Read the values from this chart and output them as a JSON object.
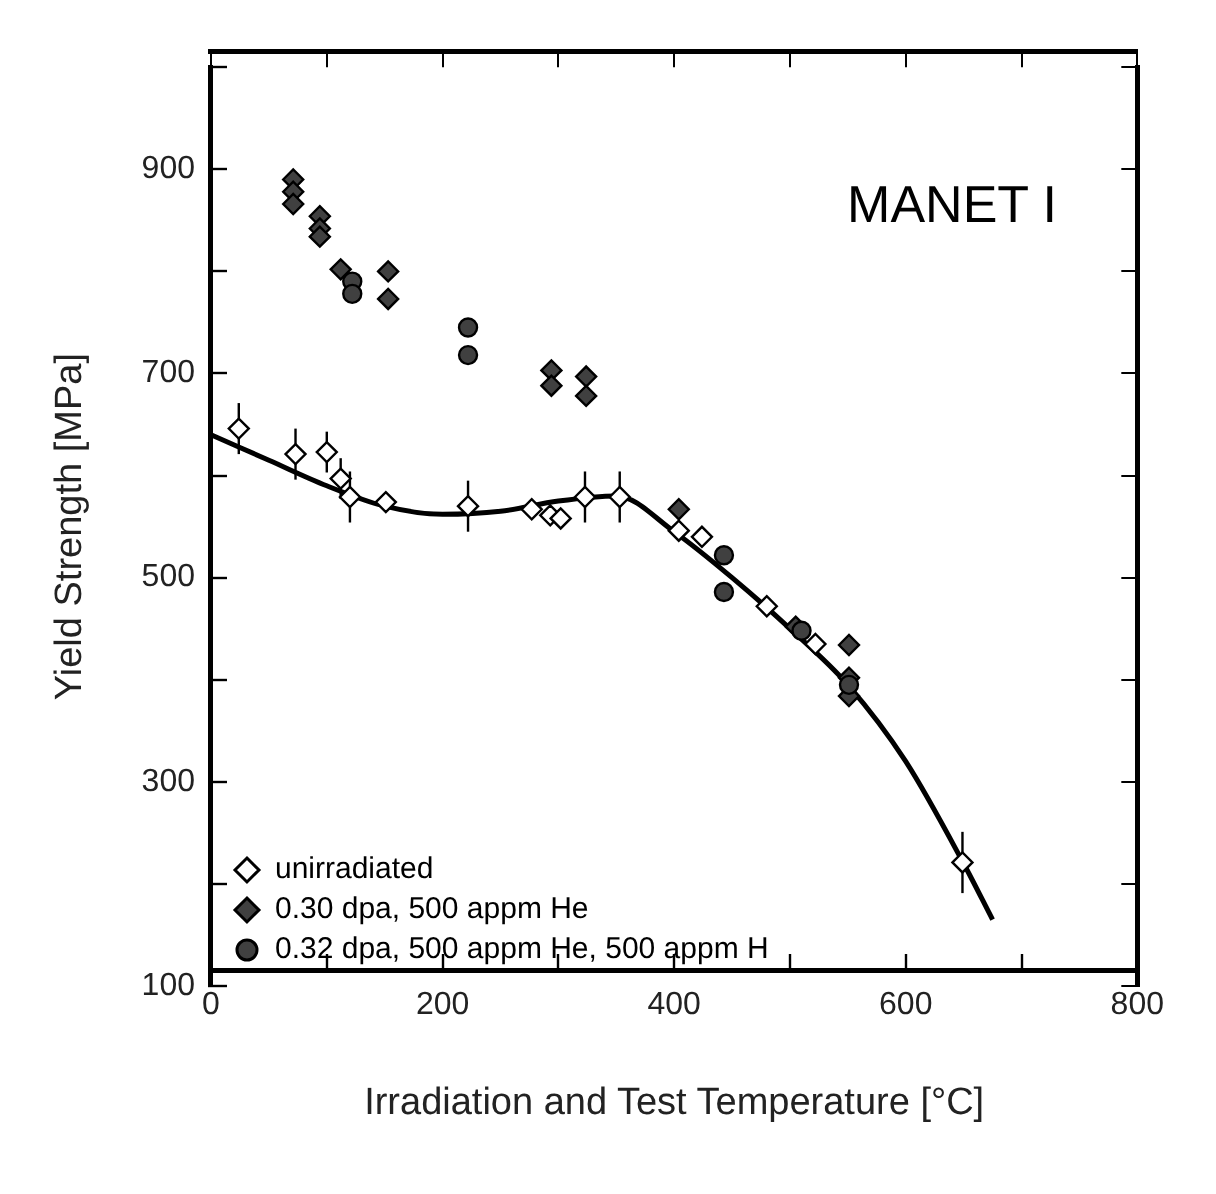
{
  "chart_data": {
    "type": "scatter",
    "xlabel": "Irradiation and Test Temperature [°C]",
    "ylabel": "Yield Strength [MPa]",
    "annotations": [
      "MANET I"
    ],
    "xlim": [
      0,
      800
    ],
    "xticks": [
      0,
      {
        "value": 100,
        "label": null
      },
      200,
      {
        "value": 300,
        "label": null
      },
      400,
      {
        "value": 500,
        "label": null
      },
      600,
      {
        "value": 700,
        "label": null
      },
      800
    ],
    "ylim": [
      100,
      1000
    ],
    "yticks": [
      100,
      {
        "value": 200,
        "label": null
      },
      300,
      {
        "value": 400,
        "label": null
      },
      500,
      {
        "value": 600,
        "label": null
      },
      700,
      {
        "value": 800,
        "label": null
      },
      900,
      {
        "value": 1000,
        "label": null
      }
    ],
    "grid": false,
    "legend": "bottom left",
    "series": [
      {
        "type": "line",
        "color": "#000000",
        "marker": "none",
        "line_style": "solid",
        "x": [
          0,
          50,
          100,
          150,
          200,
          250,
          300,
          350,
          400,
          450,
          500,
          550,
          600,
          650,
          675
        ],
        "values": [
          640,
          615,
          590,
          570,
          562,
          565,
          575,
          580,
          545,
          500,
          450,
          395,
          320,
          220,
          165
        ]
      },
      {
        "name": "unirradiated",
        "color": "#ffffff",
        "marker": "diamond",
        "x": [
          24,
          73,
          100,
          112,
          120,
          151,
          222,
          277,
          293,
          302,
          323,
          353,
          404,
          424,
          480,
          522,
          649
        ],
        "values": [
          646,
          621,
          623,
          597,
          579,
          574,
          570,
          567,
          561,
          558,
          579,
          579,
          546,
          540,
          472,
          435,
          221
        ],
        "errors": [
          25,
          25,
          20,
          20,
          25,
          null,
          25,
          null,
          null,
          null,
          25,
          25,
          null,
          null,
          null,
          null,
          30
        ]
      },
      {
        "name": "0.30 dpa, 500 appm He",
        "color": "#404040",
        "marker": "diamond",
        "x": [
          71,
          71,
          71,
          94,
          94,
          94,
          112,
          153,
          153,
          294,
          294,
          324,
          324,
          404,
          505,
          551,
          551,
          551
        ],
        "values": [
          890,
          878,
          866,
          854,
          842,
          834,
          802,
          800,
          773,
          703,
          688,
          697,
          678,
          567,
          452,
          434,
          402,
          384
        ]
      },
      {
        "name": "0.32 dpa, 500 appm He, 500 appm H",
        "color": "#404040",
        "marker": "circle",
        "x": [
          122,
          122,
          222,
          222,
          443,
          443,
          510,
          551
        ],
        "values": [
          790,
          778,
          745,
          718,
          522,
          486,
          448,
          395
        ]
      }
    ]
  }
}
